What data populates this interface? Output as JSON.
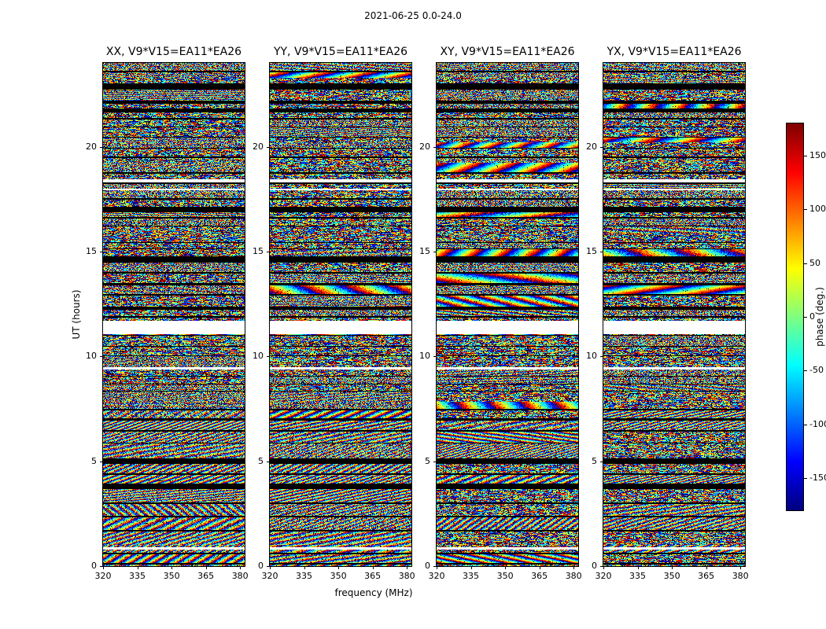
{
  "chart_data": {
    "type": "heatmap",
    "suptitle": "2021-06-25 0.0-24.0",
    "xlabel": "frequency (MHz)",
    "ylabel": "UT (hours)",
    "panels": [
      {
        "title": "XX, V9*V15=EA11*EA26"
      },
      {
        "title": "YY, V9*V15=EA11*EA26"
      },
      {
        "title": "XY, V9*V15=EA11*EA26"
      },
      {
        "title": "YX, V9*V15=EA11*EA26"
      }
    ],
    "x_range_mhz": [
      320,
      382
    ],
    "xticks": [
      320,
      335,
      350,
      365,
      380
    ],
    "y_range_hours": [
      0,
      24
    ],
    "yticks": [
      0,
      5,
      10,
      15,
      20
    ],
    "colorbar": {
      "label": "phase (deg.)",
      "ticks": [
        150,
        100,
        50,
        0,
        -50,
        -100,
        -150
      ],
      "vmin": -180,
      "vmax": 180,
      "colormap": "jet"
    },
    "time_gaps_hours": [
      [
        11.1,
        11.72
      ],
      [
        18.3,
        18.48
      ],
      [
        17.93,
        18.02
      ],
      [
        9.4,
        9.52
      ],
      [
        0.8,
        0.9
      ]
    ],
    "render": {
      "structure_seed": 20210625,
      "panel_seeds": [
        11,
        22,
        33,
        44
      ]
    }
  }
}
